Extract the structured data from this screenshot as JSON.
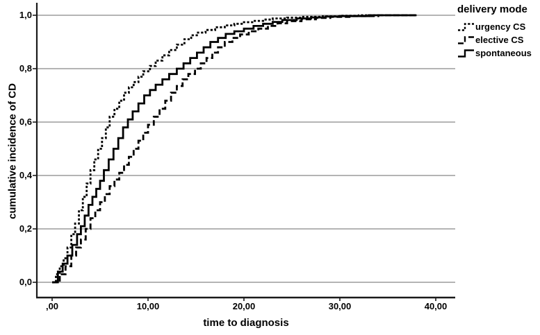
{
  "figure": {
    "background": "#ffffff",
    "axis_color": "#1a1a1a",
    "grid_color": "#9b9b9b",
    "curve_color": "#000000"
  },
  "chart_data": {
    "type": "line",
    "subtype": "step-function-cumulative-incidence",
    "title": "",
    "xlabel": "time to diagnosis",
    "ylabel": "cumulative incidence of CD",
    "xlim": [
      0,
      42
    ],
    "ylim": [
      0,
      1.05
    ],
    "grid": "horizontal",
    "x_ticks": [
      {
        "value": 0,
        "label": ",00"
      },
      {
        "value": 10,
        "label": "10,00"
      },
      {
        "value": 20,
        "label": "20,00"
      },
      {
        "value": 30,
        "label": "30,00"
      },
      {
        "value": 40,
        "label": "40,00"
      }
    ],
    "y_ticks": [
      {
        "value": 0.0,
        "label": "0,0"
      },
      {
        "value": 0.2,
        "label": "0,2"
      },
      {
        "value": 0.4,
        "label": "0,4"
      },
      {
        "value": 0.6,
        "label": "0,6"
      },
      {
        "value": 0.8,
        "label": "0,8"
      },
      {
        "value": 1.0,
        "label": "1,0"
      }
    ],
    "legend": {
      "title": "delivery mode",
      "position": "top-right-outside"
    },
    "series": [
      {
        "name": "urgency CS",
        "style": "dotted",
        "dash": "3.2 2.6",
        "points": [
          [
            0,
            0
          ],
          [
            0.4,
            0.03
          ],
          [
            0.8,
            0.06
          ],
          [
            1.2,
            0.09
          ],
          [
            1.6,
            0.13
          ],
          [
            2.0,
            0.18
          ],
          [
            2.4,
            0.22
          ],
          [
            2.8,
            0.27
          ],
          [
            3.2,
            0.32
          ],
          [
            3.6,
            0.37
          ],
          [
            4.0,
            0.42
          ],
          [
            4.4,
            0.46
          ],
          [
            4.8,
            0.5
          ],
          [
            5.2,
            0.54
          ],
          [
            5.6,
            0.58
          ],
          [
            6.0,
            0.62
          ],
          [
            6.5,
            0.65
          ],
          [
            7.0,
            0.68
          ],
          [
            7.5,
            0.71
          ],
          [
            8.0,
            0.73
          ],
          [
            8.5,
            0.75
          ],
          [
            9.0,
            0.77
          ],
          [
            9.5,
            0.79
          ],
          [
            10.2,
            0.81
          ],
          [
            10.8,
            0.83
          ],
          [
            11.5,
            0.85
          ],
          [
            12.2,
            0.87
          ],
          [
            13.0,
            0.89
          ],
          [
            13.8,
            0.91
          ],
          [
            14.5,
            0.925
          ],
          [
            15.2,
            0.935
          ],
          [
            16.0,
            0.945
          ],
          [
            17.0,
            0.955
          ],
          [
            18.0,
            0.962
          ],
          [
            19.0,
            0.968
          ],
          [
            20.0,
            0.974
          ],
          [
            21.0,
            0.979
          ],
          [
            22.0,
            0.984
          ],
          [
            23.0,
            0.988
          ],
          [
            24.5,
            0.991
          ],
          [
            26.0,
            0.994
          ],
          [
            28.0,
            0.996
          ],
          [
            30.0,
            0.998
          ],
          [
            32.0,
            1.0
          ],
          [
            38.0,
            1.0
          ]
        ]
      },
      {
        "name": "elective CS",
        "style": "long-dash",
        "dash": "8 4",
        "points": [
          [
            0,
            0
          ],
          [
            0.8,
            0.03
          ],
          [
            1.4,
            0.06
          ],
          [
            2.0,
            0.1
          ],
          [
            2.5,
            0.13
          ],
          [
            3.0,
            0.16
          ],
          [
            3.5,
            0.2
          ],
          [
            4.0,
            0.24
          ],
          [
            4.5,
            0.27
          ],
          [
            5.0,
            0.3
          ],
          [
            5.5,
            0.33
          ],
          [
            6.0,
            0.36
          ],
          [
            6.5,
            0.385
          ],
          [
            7.0,
            0.41
          ],
          [
            7.5,
            0.44
          ],
          [
            8.0,
            0.47
          ],
          [
            8.5,
            0.5
          ],
          [
            9.0,
            0.53
          ],
          [
            9.5,
            0.56
          ],
          [
            10.0,
            0.59
          ],
          [
            10.6,
            0.62
          ],
          [
            11.2,
            0.65
          ],
          [
            11.8,
            0.68
          ],
          [
            12.4,
            0.71
          ],
          [
            13.0,
            0.735
          ],
          [
            13.6,
            0.76
          ],
          [
            14.2,
            0.78
          ],
          [
            14.9,
            0.8
          ],
          [
            15.5,
            0.82
          ],
          [
            16.1,
            0.84
          ],
          [
            16.7,
            0.86
          ],
          [
            17.3,
            0.88
          ],
          [
            18.0,
            0.9
          ],
          [
            18.8,
            0.915
          ],
          [
            19.6,
            0.928
          ],
          [
            20.5,
            0.94
          ],
          [
            21.5,
            0.95
          ],
          [
            22.5,
            0.96
          ],
          [
            23.5,
            0.97
          ],
          [
            24.5,
            0.978
          ],
          [
            26.0,
            0.985
          ],
          [
            27.5,
            0.99
          ],
          [
            29.0,
            0.994
          ],
          [
            31.0,
            0.997
          ],
          [
            34.0,
            1.0
          ],
          [
            38.0,
            1.0
          ]
        ]
      },
      {
        "name": "spontaneous",
        "style": "solid",
        "dash": null,
        "points": [
          [
            0,
            0
          ],
          [
            0.6,
            0.04
          ],
          [
            1.1,
            0.07
          ],
          [
            1.6,
            0.1
          ],
          [
            2.1,
            0.14
          ],
          [
            2.6,
            0.18
          ],
          [
            3.0,
            0.21
          ],
          [
            3.4,
            0.25
          ],
          [
            3.8,
            0.29
          ],
          [
            4.2,
            0.32
          ],
          [
            4.6,
            0.35
          ],
          [
            5.0,
            0.38
          ],
          [
            5.4,
            0.42
          ],
          [
            5.9,
            0.46
          ],
          [
            6.4,
            0.5
          ],
          [
            6.9,
            0.54
          ],
          [
            7.4,
            0.58
          ],
          [
            7.9,
            0.61
          ],
          [
            8.4,
            0.64
          ],
          [
            9.0,
            0.67
          ],
          [
            9.6,
            0.7
          ],
          [
            10.2,
            0.72
          ],
          [
            10.8,
            0.74
          ],
          [
            11.5,
            0.76
          ],
          [
            12.2,
            0.78
          ],
          [
            13.0,
            0.8
          ],
          [
            13.7,
            0.82
          ],
          [
            14.4,
            0.84
          ],
          [
            15.1,
            0.86
          ],
          [
            15.8,
            0.88
          ],
          [
            16.5,
            0.9
          ],
          [
            17.3,
            0.915
          ],
          [
            18.1,
            0.93
          ],
          [
            19.0,
            0.94
          ],
          [
            20.0,
            0.95
          ],
          [
            21.0,
            0.96
          ],
          [
            22.0,
            0.968
          ],
          [
            23.0,
            0.975
          ],
          [
            24.0,
            0.982
          ],
          [
            25.5,
            0.988
          ],
          [
            27.0,
            0.992
          ],
          [
            28.5,
            0.995
          ],
          [
            30.0,
            0.997
          ],
          [
            33.0,
            1.0
          ],
          [
            38.0,
            1.0
          ]
        ]
      }
    ]
  }
}
